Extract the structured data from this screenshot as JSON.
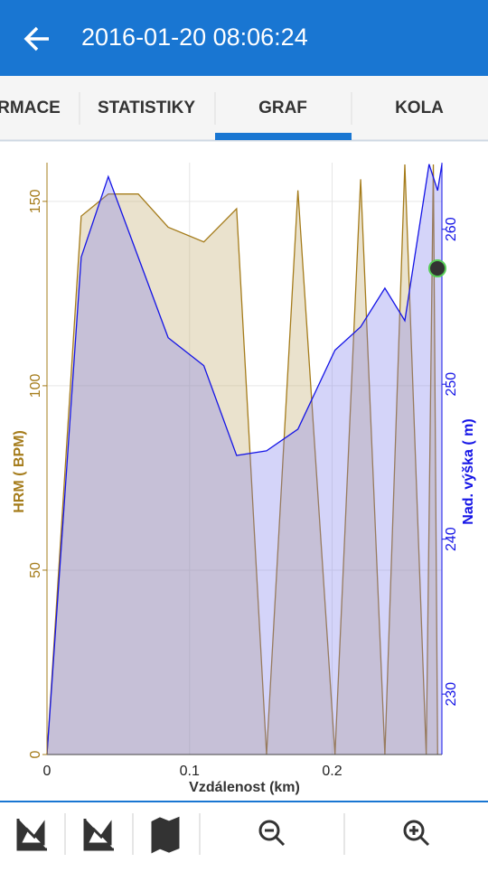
{
  "header": {
    "title": "2016-01-20 08:06:24"
  },
  "tabs": [
    "RMACE",
    "STATISTIKY",
    "GRAF",
    "KOLA"
  ],
  "chart_data": {
    "type": "area",
    "xlabel": "Vzdálenost (km)",
    "ylabel": "HRM ( BPM)",
    "y2label": "Nad. výška ( m)",
    "xlim": [
      0,
      0.277
    ],
    "xticks": [
      0,
      0.1,
      0.2
    ],
    "ylim": [
      0,
      160.5
    ],
    "yticks": [
      0,
      50,
      100,
      150
    ],
    "y2lim": [
      226.1,
      264.3
    ],
    "y2ticks": [
      230,
      240,
      250,
      260
    ],
    "grid": true,
    "series": [
      {
        "name": "HRM ( BPM)",
        "color": "#a57c1b",
        "axis": "y",
        "x": [
          0,
          0.024,
          0.043,
          0.064,
          0.085,
          0.11,
          0.133,
          0.154,
          0.176,
          0.202,
          0.22,
          0.237,
          0.251,
          0.266,
          0.271,
          0.274
        ],
        "values": [
          0,
          146,
          152,
          152,
          143,
          139,
          148,
          0,
          153,
          0,
          156,
          0,
          160,
          0,
          160,
          0
        ]
      },
      {
        "name": "Nad. výška ( m)",
        "color": "#1414e6",
        "axis": "y2",
        "x": [
          0,
          0.024,
          0.043,
          0.064,
          0.085,
          0.11,
          0.133,
          0.154,
          0.176,
          0.202,
          0.22,
          0.237,
          0.251,
          0.268,
          0.274,
          0.277
        ],
        "values": [
          226.1,
          258.2,
          263.4,
          258.2,
          253.0,
          251.2,
          245.4,
          245.7,
          247.1,
          252.2,
          253.7,
          256.2,
          254.1,
          264.2,
          262.5,
          264.2
        ]
      }
    ]
  }
}
